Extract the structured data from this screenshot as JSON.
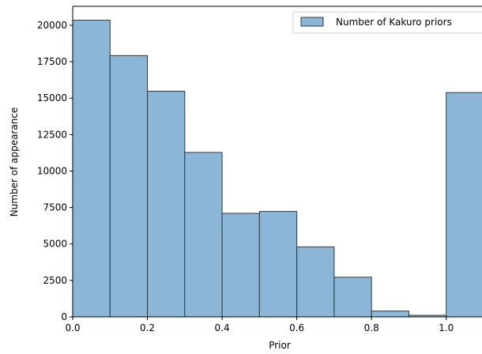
{
  "chart_data": {
    "type": "bar",
    "histogram": true,
    "bin_edges": [
      0.0,
      0.1,
      0.2,
      0.3,
      0.4,
      0.5,
      0.6,
      0.7,
      0.8,
      0.9,
      1.0,
      1.1
    ],
    "values": [
      20350,
      17920,
      15480,
      11280,
      7100,
      7230,
      4800,
      2720,
      400,
      110,
      15380
    ],
    "series": [
      {
        "name": "Number of Kakuro priors",
        "values": [
          20350,
          17920,
          15480,
          11280,
          7100,
          7230,
          4800,
          2720,
          400,
          110,
          15380
        ]
      }
    ],
    "xlabel": "Prior",
    "ylabel": "Number of appearance",
    "xlim": [
      0.0,
      1.1
    ],
    "ylim": [
      0,
      21300
    ],
    "x_ticks": [
      "0.0",
      "0.2",
      "0.4",
      "0.6",
      "0.8",
      "1.0"
    ],
    "x_tick_values": [
      0.0,
      0.2,
      0.4,
      0.6,
      0.8,
      1.0
    ],
    "y_ticks": [
      "0",
      "2500",
      "5000",
      "7500",
      "10000",
      "12500",
      "15000",
      "17500",
      "20000"
    ],
    "y_tick_values": [
      0,
      2500,
      5000,
      7500,
      10000,
      12500,
      15000,
      17500,
      20000
    ],
    "legend_position": "top-right",
    "grid": false,
    "colors": {
      "bar_fill": "#8cb6d8",
      "bar_edge": "#2b3a44",
      "axis": "#000000"
    }
  }
}
